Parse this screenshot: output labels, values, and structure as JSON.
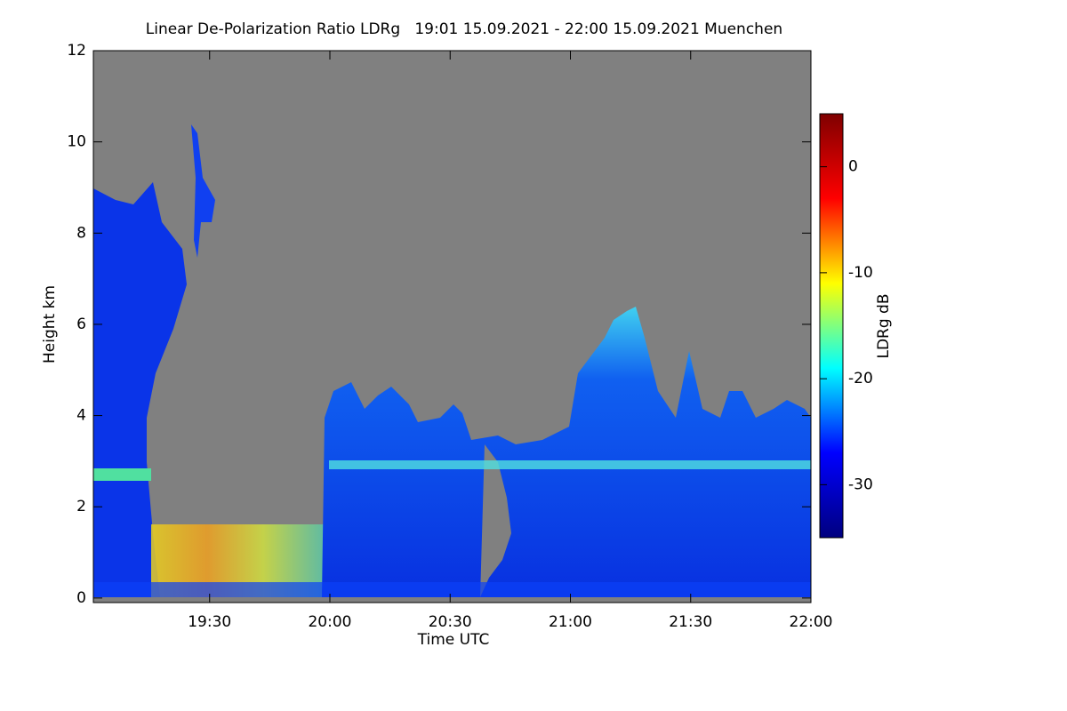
{
  "chart_data": {
    "type": "heatmap",
    "title": "Linear De-Polarization Ratio LDRg   19:01 15.09.2021 - 22:00 15.09.2021 Muenchen",
    "x_label": "Time UTC",
    "y_label": "Height km",
    "colorbar_label": "LDRg dB",
    "xlim": [
      1141,
      1320
    ],
    "xticks": [
      {
        "value": 1170,
        "label": "19:30"
      },
      {
        "value": 1200,
        "label": "20:00"
      },
      {
        "value": 1230,
        "label": "20:30"
      },
      {
        "value": 1260,
        "label": "21:00"
      },
      {
        "value": 1290,
        "label": "21:30"
      },
      {
        "value": 1320,
        "label": "22:00"
      }
    ],
    "ylim": [
      -0.1,
      12
    ],
    "yticks": [
      0,
      2,
      4,
      6,
      8,
      10,
      12
    ],
    "zlim": [
      -35,
      5
    ],
    "zticks": [
      0,
      -10,
      -20,
      -30
    ],
    "colormap": [
      "#00007f",
      "#0000ff",
      "#00ffff",
      "#ffff00",
      "#ff0000",
      "#7f0000"
    ]
  }
}
